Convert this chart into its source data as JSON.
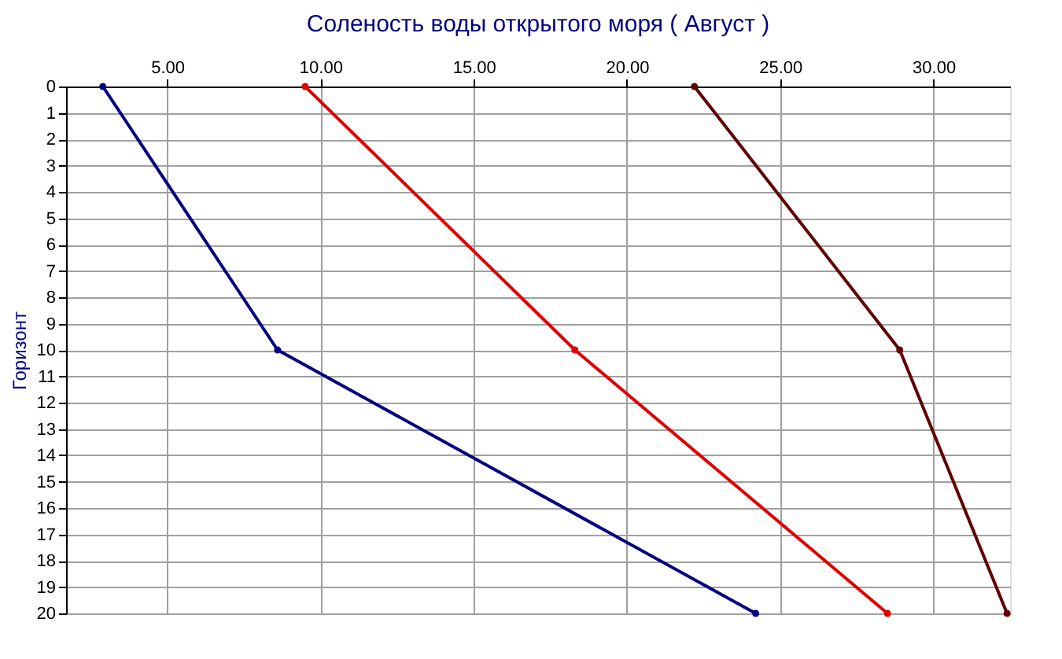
{
  "chart_data": {
    "type": "line",
    "title": "Соленость воды открытого моря    ( Август )",
    "ylabel": "Горизонт",
    "series": [
      {
        "color": "#000080",
        "x": [
          2.9,
          8.6,
          24.2
        ],
        "values": [
          0,
          10,
          20
        ]
      },
      {
        "color": "#e00000",
        "x": [
          9.5,
          18.3,
          28.5
        ],
        "values": [
          0,
          10,
          20
        ]
      },
      {
        "color": "#600000",
        "x": [
          22.2,
          28.9,
          32.4
        ],
        "values": [
          0,
          10,
          20
        ]
      }
    ],
    "xlim": [
      1.7,
      32.5
    ],
    "xticks": [
      {
        "value": 5,
        "label": "5.00"
      },
      {
        "value": 10,
        "label": "10.00"
      },
      {
        "value": 15,
        "label": "15.00"
      },
      {
        "value": 20,
        "label": "20.00"
      },
      {
        "value": 25,
        "label": "25.00"
      },
      {
        "value": 30,
        "label": "30.00"
      }
    ],
    "ylim": [
      20,
      0
    ],
    "yticks": [
      0,
      1,
      2,
      3,
      4,
      5,
      6,
      7,
      8,
      9,
      10,
      11,
      12,
      13,
      14,
      15,
      16,
      17,
      18,
      19,
      20
    ],
    "grid": true,
    "marker": "circle",
    "line_style": "solid",
    "legend": false
  }
}
